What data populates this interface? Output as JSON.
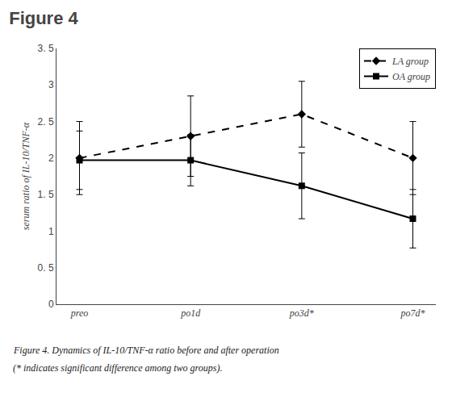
{
  "chart_data": {
    "type": "line",
    "title": "Figure 4",
    "categories": [
      "preo",
      "po1d",
      "po3d*",
      "po7d*"
    ],
    "series": [
      {
        "name": "LA group",
        "color": "black",
        "line_style": "dashed",
        "marker": "diamond",
        "values": [
          2.0,
          2.3,
          2.6,
          2.0
        ],
        "errors": [
          0.5,
          0.55,
          0.45,
          0.5
        ]
      },
      {
        "name": "OA group",
        "color": "black",
        "line_style": "solid",
        "marker": "square",
        "values": [
          1.97,
          1.97,
          1.62,
          1.17
        ],
        "errors": [
          0.4,
          0.35,
          0.45,
          0.4
        ]
      }
    ],
    "ylabel": "serum ratio of IL-10/TNF-α",
    "ylim": [
      0,
      3.5
    ],
    "yticks": [
      0,
      {
        "value": 0.5,
        "label": "0. 5"
      },
      1,
      {
        "value": 1.5,
        "label": "1. 5"
      },
      2,
      {
        "value": 2.5,
        "label": "2. 5"
      },
      3,
      {
        "value": 3.5,
        "label": "3. 5"
      }
    ],
    "annotations": [
      "Figure 4. Dynamics of IL-10/TNF-α ratio before and after operation",
      "(* indicates significant difference among two groups)."
    ],
    "legend": "upper right",
    "grid": false
  }
}
